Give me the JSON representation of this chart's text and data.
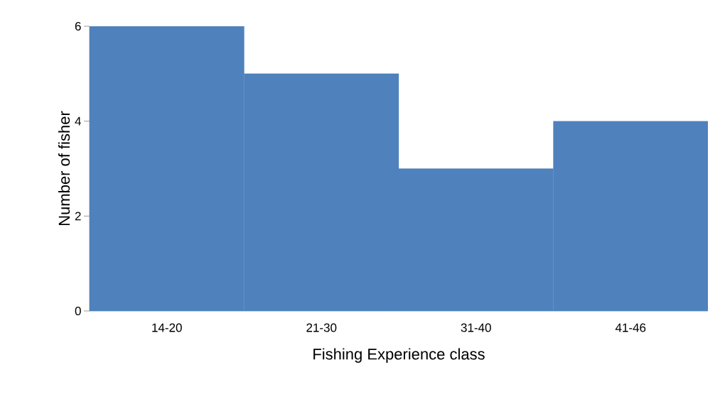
{
  "chart_data": {
    "type": "bar",
    "xlabel": "Fishing Experience class",
    "ylabel": "Number of fisher",
    "categories": [
      "14-20",
      "21-30",
      "31-40",
      "41-46"
    ],
    "values": [
      6,
      5,
      3,
      4
    ],
    "color": "#4f81bd",
    "ylim": [
      0,
      6
    ],
    "yticks": [
      0,
      2,
      4,
      6
    ]
  }
}
